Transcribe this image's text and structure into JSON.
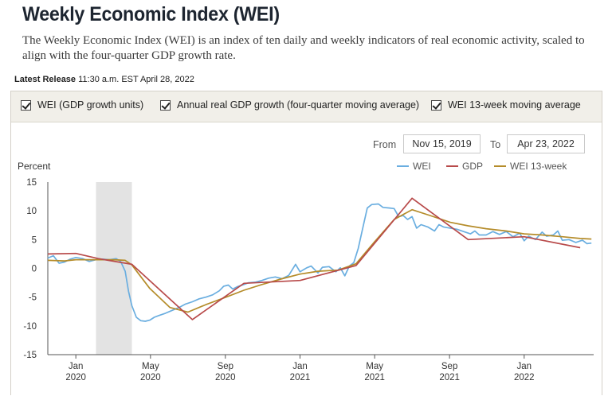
{
  "header": {
    "title": "Weekly Economic Index (WEI)",
    "subtitle": "The Weekly Economic Index (WEI) is an index of ten daily and weekly indicators of real economic activity, scaled to align with the four-quarter GDP growth rate.",
    "release_label": "Latest Release",
    "release_value": "11:30 a.m. EST April 28, 2022"
  },
  "toggles": [
    {
      "label": "WEI (GDP growth units)",
      "checked": true
    },
    {
      "label": "Annual real GDP growth (four-quarter moving average)",
      "checked": true
    },
    {
      "label": "WEI 13-week moving average",
      "checked": true
    }
  ],
  "date_range": {
    "from_label": "From",
    "from_value": "Nov 15, 2019",
    "to_label": "To",
    "to_value": "Apr 23, 2022"
  },
  "colors": {
    "wei": "#6aaee0",
    "gdp": "#b84a4a",
    "wei13": "#b58c2a",
    "recession": "#e3e3e3",
    "axis": "#555555"
  },
  "chart_data": {
    "type": "line",
    "ylabel": "Percent",
    "ylim": [
      -15,
      15
    ],
    "yticks": [
      15,
      10,
      5,
      0,
      -5,
      -10,
      -15
    ],
    "xlim": [
      2019.875,
      2022.31
    ],
    "x_ticks": [
      {
        "x": 2020.0,
        "line1": "Jan",
        "line2": "2020"
      },
      {
        "x": 2020.333,
        "line1": "May",
        "line2": "2020"
      },
      {
        "x": 2020.667,
        "line1": "Sep",
        "line2": "2020"
      },
      {
        "x": 2021.0,
        "line1": "Jan",
        "line2": "2021"
      },
      {
        "x": 2021.333,
        "line1": "May",
        "line2": "2021"
      },
      {
        "x": 2021.667,
        "line1": "Sep",
        "line2": "2021"
      },
      {
        "x": 2022.0,
        "line1": "Jan",
        "line2": "2022"
      }
    ],
    "recession": {
      "start": 2020.09,
      "end": 2020.25
    },
    "legend": [
      "WEI",
      "GDP",
      "WEI 13-week"
    ],
    "series": [
      {
        "name": "WEI",
        "color_key": "wei",
        "points": [
          [
            2019.875,
            1.8
          ],
          [
            2019.9,
            2.2
          ],
          [
            2019.925,
            0.9
          ],
          [
            2019.95,
            1.1
          ],
          [
            2019.975,
            1.6
          ],
          [
            2020.0,
            1.9
          ],
          [
            2020.03,
            1.7
          ],
          [
            2020.06,
            1.2
          ],
          [
            2020.09,
            1.5
          ],
          [
            2020.12,
            1.6
          ],
          [
            2020.15,
            1.5
          ],
          [
            2020.18,
            1.7
          ],
          [
            2020.2,
            1.2
          ],
          [
            2020.22,
            -0.5
          ],
          [
            2020.235,
            -4.0
          ],
          [
            2020.25,
            -6.5
          ],
          [
            2020.27,
            -8.5
          ],
          [
            2020.29,
            -9.1
          ],
          [
            2020.31,
            -9.2
          ],
          [
            2020.33,
            -9.0
          ],
          [
            2020.35,
            -8.5
          ],
          [
            2020.37,
            -8.2
          ],
          [
            2020.4,
            -7.8
          ],
          [
            2020.43,
            -7.3
          ],
          [
            2020.46,
            -6.8
          ],
          [
            2020.49,
            -6.2
          ],
          [
            2020.52,
            -5.8
          ],
          [
            2020.55,
            -5.3
          ],
          [
            2020.58,
            -5.0
          ],
          [
            2020.61,
            -4.6
          ],
          [
            2020.64,
            -3.9
          ],
          [
            2020.66,
            -3.1
          ],
          [
            2020.68,
            -2.9
          ],
          [
            2020.7,
            -3.6
          ],
          [
            2020.72,
            -3.2
          ],
          [
            2020.75,
            -2.8
          ],
          [
            2020.77,
            -2.5
          ],
          [
            2020.8,
            -2.4
          ],
          [
            2020.83,
            -2.1
          ],
          [
            2020.86,
            -1.7
          ],
          [
            2020.89,
            -1.5
          ],
          [
            2020.92,
            -1.8
          ],
          [
            2020.95,
            -1.2
          ],
          [
            2020.98,
            0.7
          ],
          [
            2021.0,
            -0.6
          ],
          [
            2021.03,
            0.1
          ],
          [
            2021.05,
            0.4
          ],
          [
            2021.08,
            -0.8
          ],
          [
            2021.1,
            0.2
          ],
          [
            2021.13,
            0.3
          ],
          [
            2021.16,
            -0.6
          ],
          [
            2021.18,
            0.1
          ],
          [
            2021.2,
            -1.3
          ],
          [
            2021.22,
            0.4
          ],
          [
            2021.24,
            1.0
          ],
          [
            2021.26,
            3.5
          ],
          [
            2021.28,
            7.0
          ],
          [
            2021.3,
            10.5
          ],
          [
            2021.32,
            11.1
          ],
          [
            2021.35,
            11.2
          ],
          [
            2021.37,
            10.6
          ],
          [
            2021.4,
            10.5
          ],
          [
            2021.42,
            10.4
          ],
          [
            2021.44,
            9.0
          ],
          [
            2021.46,
            9.2
          ],
          [
            2021.48,
            8.5
          ],
          [
            2021.5,
            9.0
          ],
          [
            2021.52,
            7.0
          ],
          [
            2021.54,
            7.6
          ],
          [
            2021.57,
            7.2
          ],
          [
            2021.6,
            6.5
          ],
          [
            2021.62,
            7.6
          ],
          [
            2021.64,
            7.2
          ],
          [
            2021.67,
            7.0
          ],
          [
            2021.7,
            6.8
          ],
          [
            2021.73,
            6.4
          ],
          [
            2021.76,
            6.0
          ],
          [
            2021.78,
            6.5
          ],
          [
            2021.8,
            5.8
          ],
          [
            2021.83,
            5.8
          ],
          [
            2021.86,
            6.4
          ],
          [
            2021.89,
            5.9
          ],
          [
            2021.92,
            6.4
          ],
          [
            2021.95,
            5.5
          ],
          [
            2021.98,
            6.1
          ],
          [
            2022.0,
            4.8
          ],
          [
            2022.02,
            5.6
          ],
          [
            2022.05,
            5.0
          ],
          [
            2022.08,
            6.3
          ],
          [
            2022.1,
            5.6
          ],
          [
            2022.13,
            5.8
          ],
          [
            2022.15,
            6.5
          ],
          [
            2022.17,
            4.9
          ],
          [
            2022.2,
            5.0
          ],
          [
            2022.23,
            4.5
          ],
          [
            2022.26,
            4.9
          ],
          [
            2022.28,
            4.3
          ],
          [
            2022.3,
            4.4
          ]
        ]
      },
      {
        "name": "GDP",
        "color_key": "gdp",
        "points": [
          [
            2019.875,
            2.5
          ],
          [
            2020.0,
            2.6
          ],
          [
            2020.1,
            1.7
          ],
          [
            2020.25,
            0.7
          ],
          [
            2020.52,
            -8.9
          ],
          [
            2020.75,
            -2.6
          ],
          [
            2021.0,
            -2.1
          ],
          [
            2021.25,
            0.5
          ],
          [
            2021.5,
            12.2
          ],
          [
            2021.75,
            5.0
          ],
          [
            2022.0,
            5.5
          ],
          [
            2022.25,
            3.6
          ]
        ]
      },
      {
        "name": "WEI 13-week",
        "color_key": "wei13",
        "points": [
          [
            2019.875,
            1.4
          ],
          [
            2019.95,
            1.3
          ],
          [
            2020.0,
            1.5
          ],
          [
            2020.1,
            1.5
          ],
          [
            2020.17,
            1.5
          ],
          [
            2020.22,
            1.4
          ],
          [
            2020.25,
            0.6
          ],
          [
            2020.33,
            -3.5
          ],
          [
            2020.42,
            -6.8
          ],
          [
            2020.5,
            -7.6
          ],
          [
            2020.58,
            -6.3
          ],
          [
            2020.67,
            -5.0
          ],
          [
            2020.75,
            -3.8
          ],
          [
            2020.83,
            -2.8
          ],
          [
            2020.92,
            -1.8
          ],
          [
            2021.0,
            -1.0
          ],
          [
            2021.08,
            -0.5
          ],
          [
            2021.17,
            -0.3
          ],
          [
            2021.25,
            0.8
          ],
          [
            2021.33,
            4.5
          ],
          [
            2021.42,
            8.5
          ],
          [
            2021.5,
            10.2
          ],
          [
            2021.58,
            9.2
          ],
          [
            2021.67,
            8.0
          ],
          [
            2021.75,
            7.4
          ],
          [
            2021.83,
            6.9
          ],
          [
            2021.92,
            6.5
          ],
          [
            2022.0,
            6.0
          ],
          [
            2022.08,
            5.8
          ],
          [
            2022.17,
            5.5
          ],
          [
            2022.25,
            5.2
          ],
          [
            2022.3,
            5.1
          ]
        ]
      }
    ]
  }
}
